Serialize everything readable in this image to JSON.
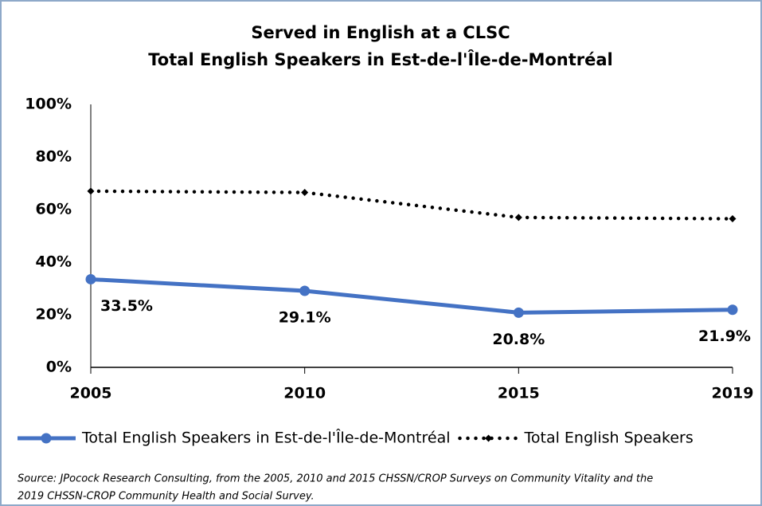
{
  "chart_data": {
    "type": "line",
    "title": "Served in English at a CLSC",
    "subtitle": "Total English Speakers in Est-de-l'Île-de-Montréal",
    "categories": [
      "2005",
      "2010",
      "2015",
      "2019"
    ],
    "series": [
      {
        "name": "Total English Speakers in Est-de-l'Île-de-Montréal",
        "color": "#4472c4",
        "style": "solid",
        "marker": "circle",
        "values": [
          33.5,
          29.1,
          20.8,
          21.9
        ],
        "value_labels": [
          "33.5%",
          "29.1%",
          "20.8%",
          "21.9%"
        ]
      },
      {
        "name": "Total English Speakers",
        "color": "#000000",
        "style": "dotted",
        "marker": "diamond",
        "values": [
          67,
          66.5,
          57,
          56.5
        ]
      }
    ],
    "ylim": [
      0,
      100
    ],
    "yticks": [
      {
        "value": 0,
        "label": "0%"
      },
      {
        "value": 20,
        "label": "20%"
      },
      {
        "value": 40,
        "label": "40%"
      },
      {
        "value": 60,
        "label": "60%"
      },
      {
        "value": 80,
        "label": "80%"
      },
      {
        "value": 100,
        "label": "100%"
      }
    ],
    "grid": false,
    "legend": "bottom",
    "source": [
      "Source: JPocock Research Consulting, from the 2005, 2010  and 2015  CHSSN/CROP Surveys on Community Vitality and the",
      "2019  CHSSN-CROP Community Health and Social Survey."
    ]
  }
}
